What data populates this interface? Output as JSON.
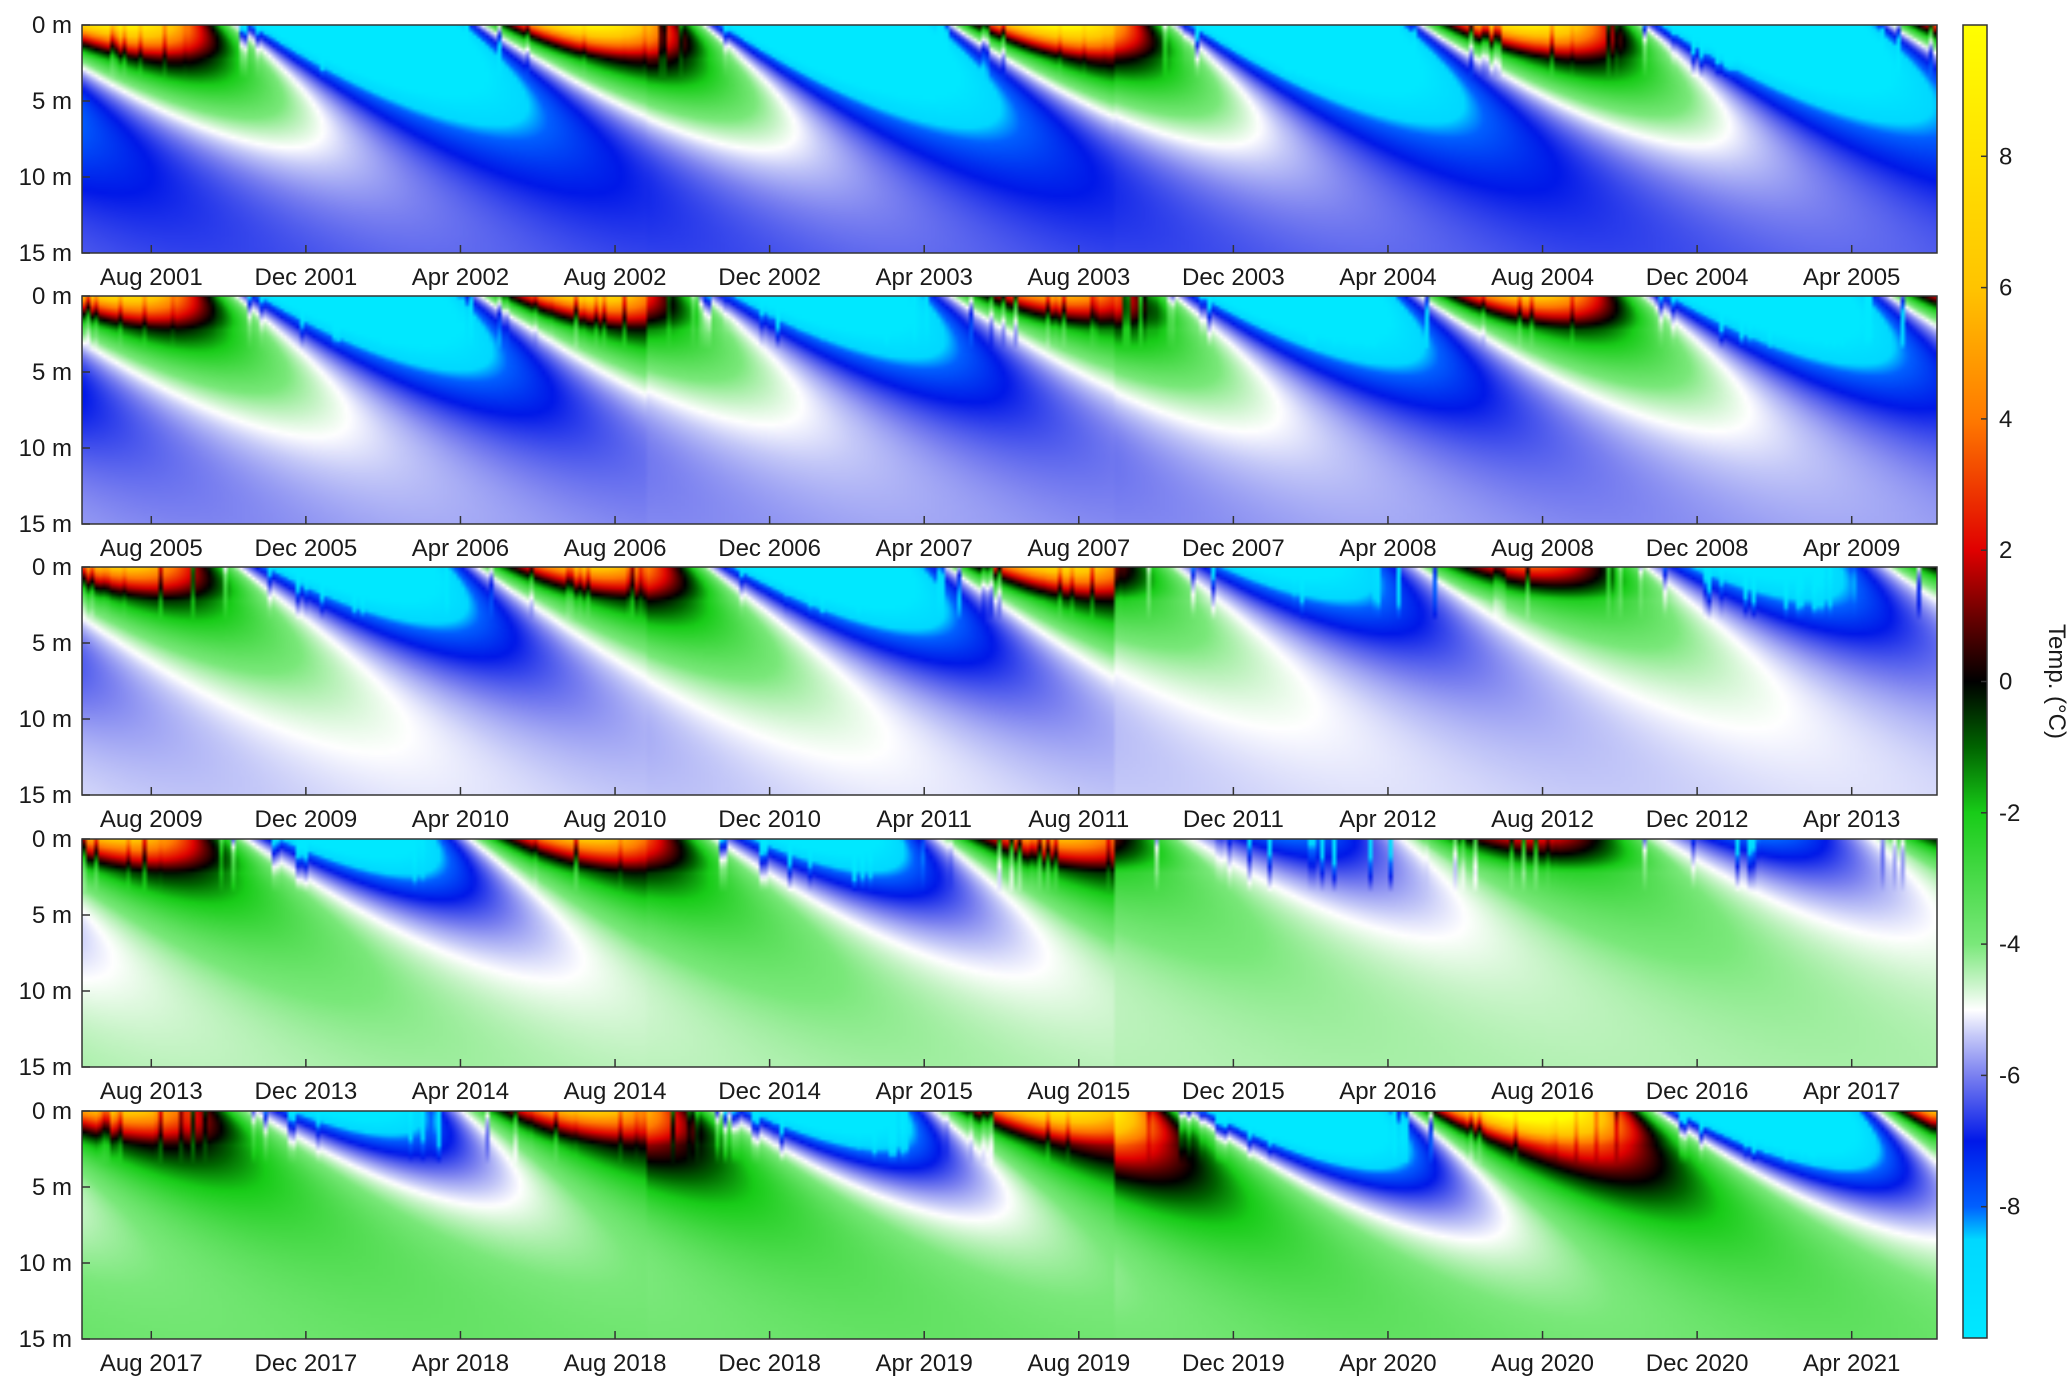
{
  "chart_data": {
    "type": "heatmap",
    "colorbar": {
      "label": "Temp. (°C)",
      "range": [
        -10,
        10
      ],
      "ticks": [
        8,
        6,
        4,
        2,
        0,
        -2,
        -4,
        -6,
        -8
      ],
      "colormap": [
        {
          "value": -10,
          "color": "#00e8ff"
        },
        {
          "value": -8.5,
          "color": "#00d8ff"
        },
        {
          "value": -8,
          "color": "#0060ff"
        },
        {
          "value": -7,
          "color": "#0018e8"
        },
        {
          "value": -6,
          "color": "#7a80f0"
        },
        {
          "value": -5.4,
          "color": "#c4c8f8"
        },
        {
          "value": -5,
          "color": "#ffffff"
        },
        {
          "value": -4.6,
          "color": "#c8f4c8"
        },
        {
          "value": -4,
          "color": "#7ae87a"
        },
        {
          "value": -2,
          "color": "#18cc18"
        },
        {
          "value": -1,
          "color": "#006400"
        },
        {
          "value": 0,
          "color": "#000000"
        },
        {
          "value": 1,
          "color": "#6b0000"
        },
        {
          "value": 2,
          "color": "#e00000"
        },
        {
          "value": 4,
          "color": "#ff7a00"
        },
        {
          "value": 6,
          "color": "#ffc400"
        },
        {
          "value": 10,
          "color": "#ffff00"
        }
      ]
    },
    "y_axis": {
      "ticks": [
        "0 m",
        "5 m",
        "10 m",
        "15 m"
      ],
      "range_m": [
        0,
        15
      ]
    },
    "panels": [
      {
        "x_ticks": [
          "Aug 2001",
          "Dec 2001",
          "Apr 2002",
          "Aug 2002",
          "Dec 2002",
          "Apr 2003",
          "Aug 2003",
          "Dec 2003",
          "Apr 2004",
          "Aug 2004",
          "Dec 2004",
          "Apr 2005"
        ],
        "deep_temp_c": -6.4,
        "winter_strength": [
          1.25,
          1.3,
          1.2
        ]
      },
      {
        "x_ticks": [
          "Aug 2005",
          "Dec 2005",
          "Apr 2006",
          "Aug 2006",
          "Dec 2006",
          "Apr 2007",
          "Aug 2007",
          "Dec 2007",
          "Apr 2008",
          "Aug 2008",
          "Dec 2008",
          "Apr 2009"
        ],
        "deep_temp_c": -5.8,
        "winter_strength": [
          1.0,
          0.8,
          0.9
        ]
      },
      {
        "x_ticks": [
          "Aug 2009",
          "Dec 2009",
          "Apr 2010",
          "Aug 2010",
          "Dec 2010",
          "Apr 2011",
          "Aug 2011",
          "Dec 2011",
          "Apr 2012",
          "Aug 2012",
          "Dec 2012",
          "Apr 2013"
        ],
        "deep_temp_c": -5.3,
        "winter_strength": [
          0.85,
          0.95,
          0.55
        ]
      },
      {
        "x_ticks": [
          "Aug 2013",
          "Dec 2013",
          "Apr 2014",
          "Aug 2014",
          "Dec 2014",
          "Apr 2015",
          "Aug 2015",
          "Dec 2015",
          "Apr 2016",
          "Aug 2016",
          "Dec 2016",
          "Apr 2017"
        ],
        "deep_temp_c": -4.4,
        "winter_strength": [
          0.75,
          0.7,
          0.35
        ]
      },
      {
        "x_ticks": [
          "Aug 2017",
          "Dec 2017",
          "Apr 2018",
          "Aug 2018",
          "Dec 2018",
          "Apr 2019",
          "Aug 2019",
          "Dec 2019",
          "Apr 2020",
          "Aug 2020",
          "Dec 2020",
          "Apr 2021"
        ],
        "deep_temp_c": -3.7,
        "winter_strength": [
          0.7,
          0.9,
          1.3
        ]
      }
    ]
  }
}
